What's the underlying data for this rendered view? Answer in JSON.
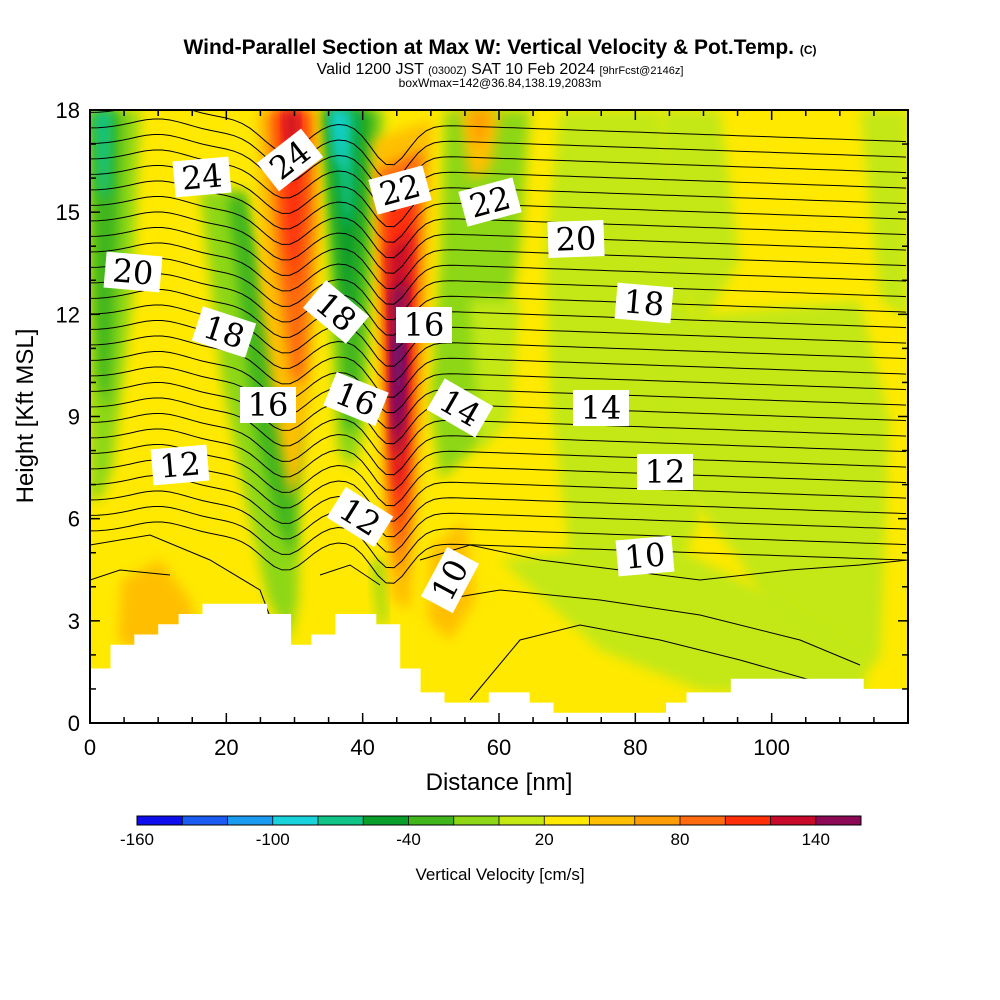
{
  "chart_data": {
    "type": "heatmap",
    "title": "Wind-Parallel Section at Max W: Vertical Velocity & Pot.Temp.",
    "title_mark": "(C)",
    "subtitle": {
      "valid_prefix": "Valid 1200 JST",
      "utc": "(0300Z)",
      "date": "SAT 10 Feb 2024",
      "forecast": "[9hrFcst@2146z]"
    },
    "box_info": "boxWmax=142@36.84,138.19,2083m",
    "xlabel": "Distance [nm]",
    "ylabel": "Height [Kft MSL]",
    "xlim": [
      0,
      120
    ],
    "ylim": [
      0,
      18
    ],
    "xticks": [
      "0",
      "20",
      "40",
      "60",
      "80",
      "100"
    ],
    "yticks": [
      "0",
      "3",
      "6",
      "9",
      "12",
      "15",
      "18"
    ],
    "colorbar": {
      "label": "Vertical Velocity [cm/s]",
      "tick_labels": [
        "-160",
        "-100",
        "-40",
        "20",
        "80",
        "140"
      ],
      "levels": [
        -160,
        -140,
        -120,
        -100,
        -80,
        -60,
        -40,
        -20,
        0,
        20,
        40,
        60,
        80,
        100,
        120,
        140,
        160
      ],
      "colors": [
        "#0d0dee",
        "#1a5cf2",
        "#1a9bf0",
        "#19d3dc",
        "#10c488",
        "#0a9e2a",
        "#40b51c",
        "#8dd716",
        "#c3e812",
        "#ffe900",
        "#ffbf00",
        "#ff9c06",
        "#ff6b0e",
        "#ff2f0a",
        "#c80a2a",
        "#8c0a55",
        "#5e0a7c"
      ]
    },
    "field_features": [
      {
        "kind": "updraft",
        "x_nm": 45,
        "top_kft": 18,
        "bottom_kft": 3,
        "peak_cm_s": 142
      },
      {
        "kind": "updraft",
        "x_nm": 30,
        "top_kft": 18,
        "bottom_kft": 8
      },
      {
        "kind": "downdraft",
        "x_nm": 38,
        "top_kft": 18,
        "bottom_kft": 8
      },
      {
        "kind": "downdraft",
        "x_nm": 4,
        "top_kft": 18,
        "bottom_kft": 9
      }
    ],
    "theta_contour_labels": [
      "24",
      "24",
      "22",
      "22",
      "20",
      "20",
      "18",
      "18",
      "18",
      "16",
      "16",
      "16",
      "14",
      "14",
      "12",
      "12",
      "12",
      "10",
      "10"
    ],
    "terrain_kft": [
      [
        0,
        1.6
      ],
      [
        3,
        1.6
      ],
      [
        3,
        2.3
      ],
      [
        6.5,
        2.3
      ],
      [
        6.5,
        2.6
      ],
      [
        10,
        2.6
      ],
      [
        10,
        2.9
      ],
      [
        13,
        2.9
      ],
      [
        13,
        3.2
      ],
      [
        16.5,
        3.2
      ],
      [
        16.5,
        3.5
      ],
      [
        26,
        3.5
      ],
      [
        26,
        3.2
      ],
      [
        29.5,
        3.2
      ],
      [
        29.5,
        2.3
      ],
      [
        32.5,
        2.3
      ],
      [
        32.5,
        2.6
      ],
      [
        36,
        2.6
      ],
      [
        36,
        3.2
      ],
      [
        42,
        3.2
      ],
      [
        42,
        2.9
      ],
      [
        45.5,
        2.9
      ],
      [
        45.5,
        1.6
      ],
      [
        48.5,
        1.6
      ],
      [
        48.5,
        0.9
      ],
      [
        52,
        0.9
      ],
      [
        52,
        0.6
      ],
      [
        58.5,
        0.6
      ],
      [
        58.5,
        0.9
      ],
      [
        64.5,
        0.9
      ],
      [
        64.5,
        0.6
      ],
      [
        68,
        0.6
      ],
      [
        68,
        0.3
      ],
      [
        84.5,
        0.3
      ],
      [
        84.5,
        0.6
      ],
      [
        87.5,
        0.6
      ],
      [
        87.5,
        0.9
      ],
      [
        94,
        0.9
      ],
      [
        94,
        1.3
      ],
      [
        113.5,
        1.3
      ],
      [
        113.5,
        1
      ],
      [
        120,
        1
      ]
    ]
  }
}
